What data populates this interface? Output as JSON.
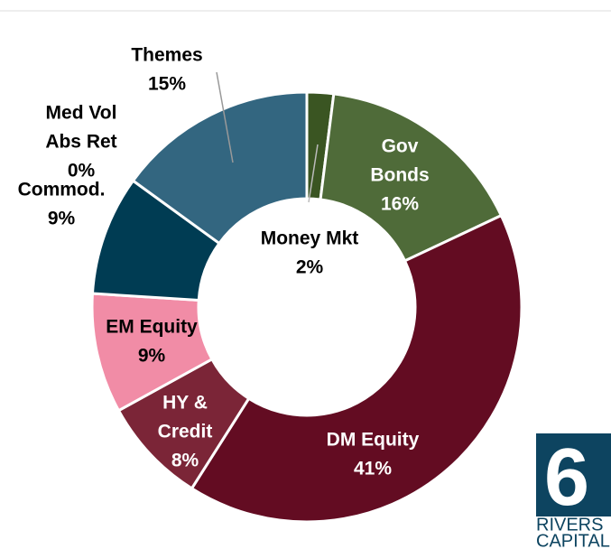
{
  "chart_data": {
    "type": "donut",
    "categories": [
      [
        "Money Mkt"
      ],
      [
        "Gov",
        "Bonds"
      ],
      [
        "DM Equity"
      ],
      [
        "HY &",
        "Credit"
      ],
      [
        "EM Equity"
      ],
      [
        "Commod."
      ],
      [
        "Med Vol",
        "Abs Ret"
      ],
      [
        "Themes"
      ]
    ],
    "values": [
      2,
      16,
      41,
      8,
      9,
      9,
      0,
      15
    ],
    "value_labels": [
      "2%",
      "16%",
      "41%",
      "8%",
      "9%",
      "9%",
      "0%",
      "15%"
    ],
    "colors": [
      "#3a5522",
      "#4f6b39",
      "#630c22",
      "#7b2537",
      "#f18ca6",
      "#003c53",
      "#336680",
      "#336680"
    ]
  },
  "logo": {
    "number": "6",
    "line1": "RIVERS",
    "line2": "CAPITAL"
  }
}
